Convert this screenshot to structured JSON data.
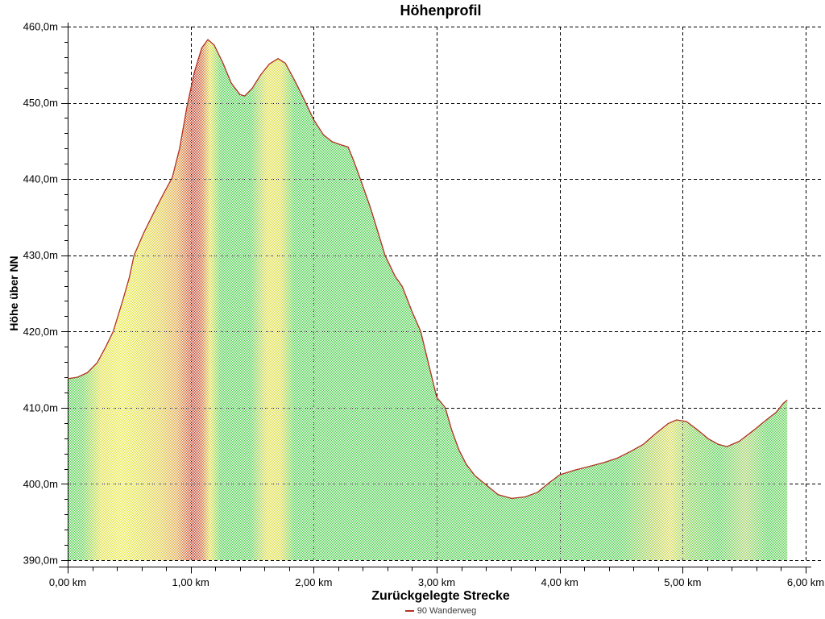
{
  "window": {
    "background": "#ffffff"
  },
  "header": {
    "title": "Höhenprofil"
  },
  "axes": {
    "y_title": "Höhe über NN",
    "x_title": "Zurückgelegte Strecke",
    "y_tick_labels": [
      "460,0m",
      "450,0m",
      "440,0m",
      "430,0m",
      "420,0m",
      "410,0m",
      "400,0m",
      "390,0m"
    ],
    "x_tick_labels": [
      "0,00 km",
      "1,00 km",
      "2,00 km",
      "3,00 km",
      "4,00 km",
      "5,00 km",
      "6,00 km"
    ]
  },
  "legend": {
    "marker_color": "#b23222",
    "series_label": "90 Wanderweg"
  },
  "chart_data": {
    "type": "area",
    "title": "Höhenprofil",
    "xlabel": "Zurückgelegte Strecke",
    "ylabel": "Höhe über NN",
    "x_unit": "km",
    "y_unit": "m",
    "xlim": [
      0,
      6
    ],
    "ylim": [
      390,
      460
    ],
    "x_major_step": 1.0,
    "x_minor_step": 0.2,
    "y_major_step": 10,
    "y_minor_step": 2,
    "grid": true,
    "grid_style": "dashed",
    "grid_color": "#000000",
    "legend_position": "bottom",
    "line_color": "#b23222",
    "fill_style": "dithered-slope-gradient",
    "slope_colors": {
      "flat": "#44cc44",
      "moderate": "#dddd33",
      "steep": "#b52f1f"
    },
    "series": [
      {
        "name": "90 Wanderweg",
        "points": [
          [
            0.0,
            413.8
          ],
          [
            0.08,
            414.0
          ],
          [
            0.16,
            414.6
          ],
          [
            0.24,
            415.9
          ],
          [
            0.31,
            418.0
          ],
          [
            0.37,
            420.0
          ],
          [
            0.45,
            424.2
          ],
          [
            0.5,
            427.0
          ],
          [
            0.54,
            430.0
          ],
          [
            0.62,
            433.0
          ],
          [
            0.7,
            435.6
          ],
          [
            0.78,
            438.1
          ],
          [
            0.85,
            440.2
          ],
          [
            0.91,
            444.0
          ],
          [
            0.97,
            449.5
          ],
          [
            1.03,
            454.0
          ],
          [
            1.09,
            457.2
          ],
          [
            1.14,
            458.3
          ],
          [
            1.19,
            457.6
          ],
          [
            1.26,
            455.3
          ],
          [
            1.33,
            452.6
          ],
          [
            1.4,
            451.1
          ],
          [
            1.44,
            450.9
          ],
          [
            1.5,
            451.9
          ],
          [
            1.57,
            453.7
          ],
          [
            1.64,
            455.1
          ],
          [
            1.71,
            455.8
          ],
          [
            1.77,
            455.2
          ],
          [
            1.85,
            452.8
          ],
          [
            1.93,
            450.2
          ],
          [
            2.0,
            447.8
          ],
          [
            2.08,
            445.8
          ],
          [
            2.15,
            444.9
          ],
          [
            2.22,
            444.5
          ],
          [
            2.28,
            444.2
          ],
          [
            2.33,
            442.2
          ],
          [
            2.38,
            440.0
          ],
          [
            2.46,
            436.3
          ],
          [
            2.52,
            433.2
          ],
          [
            2.58,
            430.0
          ],
          [
            2.66,
            427.3
          ],
          [
            2.72,
            425.9
          ],
          [
            2.8,
            422.6
          ],
          [
            2.87,
            420.0
          ],
          [
            2.94,
            415.4
          ],
          [
            3.0,
            411.4
          ],
          [
            3.07,
            410.0
          ],
          [
            3.12,
            407.2
          ],
          [
            3.18,
            404.5
          ],
          [
            3.24,
            402.6
          ],
          [
            3.31,
            401.1
          ],
          [
            3.4,
            399.9
          ],
          [
            3.5,
            398.6
          ],
          [
            3.61,
            398.1
          ],
          [
            3.72,
            398.3
          ],
          [
            3.82,
            398.9
          ],
          [
            3.91,
            400.1
          ],
          [
            4.0,
            401.2
          ],
          [
            4.12,
            401.8
          ],
          [
            4.24,
            402.3
          ],
          [
            4.36,
            402.8
          ],
          [
            4.47,
            403.4
          ],
          [
            4.58,
            404.3
          ],
          [
            4.68,
            405.2
          ],
          [
            4.78,
            406.6
          ],
          [
            4.88,
            407.9
          ],
          [
            4.95,
            408.4
          ],
          [
            5.03,
            408.2
          ],
          [
            5.12,
            407.1
          ],
          [
            5.21,
            405.9
          ],
          [
            5.29,
            405.2
          ],
          [
            5.36,
            404.9
          ],
          [
            5.46,
            405.6
          ],
          [
            5.59,
            407.2
          ],
          [
            5.68,
            408.4
          ],
          [
            5.76,
            409.4
          ],
          [
            5.82,
            410.6
          ],
          [
            5.85,
            411.0
          ]
        ]
      }
    ],
    "fill_gradient_stops": [
      [
        0.0,
        "#44cc44"
      ],
      [
        0.02,
        "#55cc44"
      ],
      [
        0.046,
        "#dddd33"
      ],
      [
        0.075,
        "#e8e838"
      ],
      [
        0.1,
        "#dddd33"
      ],
      [
        0.13,
        "#ddc433"
      ],
      [
        0.152,
        "#dd9933"
      ],
      [
        0.166,
        "#cc5522"
      ],
      [
        0.175,
        "#b52f1f"
      ],
      [
        0.186,
        "#cc5522"
      ],
      [
        0.198,
        "#dddd33"
      ],
      [
        0.213,
        "#44cc44"
      ],
      [
        0.254,
        "#44cc44"
      ],
      [
        0.268,
        "#aad144"
      ],
      [
        0.278,
        "#dddd33"
      ],
      [
        0.296,
        "#d8d833"
      ],
      [
        0.315,
        "#44cc44"
      ],
      [
        0.77,
        "#44cc44"
      ],
      [
        0.815,
        "#aacc44"
      ],
      [
        0.838,
        "#d4d844"
      ],
      [
        0.865,
        "#77cc44"
      ],
      [
        0.905,
        "#44cc44"
      ],
      [
        0.942,
        "#99cc55"
      ],
      [
        0.972,
        "#44cc44"
      ],
      [
        1.0,
        "#55cc44"
      ]
    ]
  }
}
